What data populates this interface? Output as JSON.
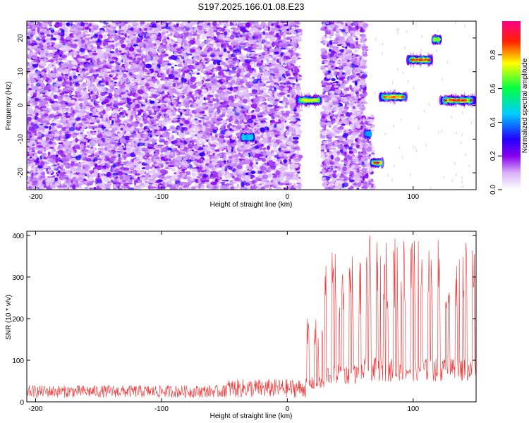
{
  "title": "S197.2025.166.01.08.E23",
  "chart_data": [
    {
      "type": "heatmap",
      "xlabel": "Height of straight line (km)",
      "ylabel": "Frequency (Hz)",
      "xlim": [
        -207,
        150
      ],
      "ylim": [
        -25,
        25
      ],
      "x_ticks": [
        -200,
        -100,
        0,
        100
      ],
      "y_ticks": [
        -20,
        -10,
        0,
        10,
        20
      ],
      "colorbar": {
        "label": "Normalized spectral amplitude",
        "range": [
          0,
          1
        ],
        "ticks": [
          0.0,
          0.2,
          0.4,
          0.6,
          0.8
        ],
        "colormap": [
          "#ffffff",
          "#8800ee",
          "#0000ff",
          "#00ffff",
          "#00ff00",
          "#ffff00",
          "#ff0000",
          "#ff0088"
        ]
      },
      "noise_regions": [
        {
          "x": [
            -207,
            10
          ],
          "y": [
            -25,
            25
          ],
          "level": 0.2
        },
        {
          "x": [
            28,
            62
          ],
          "y": [
            -25,
            25
          ],
          "level": 0.18
        },
        {
          "x": [
            60,
            68
          ],
          "y": [
            -25,
            -3
          ],
          "level": 0.15
        }
      ],
      "features": [
        {
          "x": [
            -36,
            -26
          ],
          "y": -9.5,
          "peak": 0.45
        },
        {
          "x": [
            8,
            28
          ],
          "y": 1.5,
          "peak": 0.75
        },
        {
          "x": [
            62,
            67
          ],
          "y": -8.5,
          "peak": 0.4
        },
        {
          "x": [
            67,
            76
          ],
          "y": -17,
          "peak": 0.9
        },
        {
          "x": [
            74,
            95
          ],
          "y": 2.5,
          "peak": 0.8
        },
        {
          "x": [
            96,
            116
          ],
          "y": 13.5,
          "peak": 0.85
        },
        {
          "x": [
            116,
            122
          ],
          "y": 19.5,
          "peak": 0.7
        },
        {
          "x": [
            122,
            150
          ],
          "y": 1.5,
          "peak": 0.85
        }
      ],
      "grid": false
    },
    {
      "type": "line",
      "xlabel": "Height of straight line (km)",
      "ylabel": "SNR (10 * v/v)",
      "xlim": [
        -207,
        150
      ],
      "ylim": [
        0,
        410
      ],
      "x_ticks": [
        -200,
        -100,
        0,
        100
      ],
      "y_ticks": [
        0,
        100,
        200,
        300,
        400
      ],
      "color": "#ee3333",
      "grid": false,
      "segments": [
        {
          "x_start": -207,
          "x_end": -50,
          "low": 10,
          "high": 40
        },
        {
          "x_start": -50,
          "x_end": 15,
          "low": 10,
          "high": 55
        },
        {
          "x_start": 15,
          "x_end": 30,
          "low": 40,
          "high": 200
        },
        {
          "x_start": 30,
          "x_end": 60,
          "low": 60,
          "high": 360
        },
        {
          "x_start": 60,
          "x_end": 150,
          "low": 70,
          "high": 400
        }
      ]
    }
  ]
}
